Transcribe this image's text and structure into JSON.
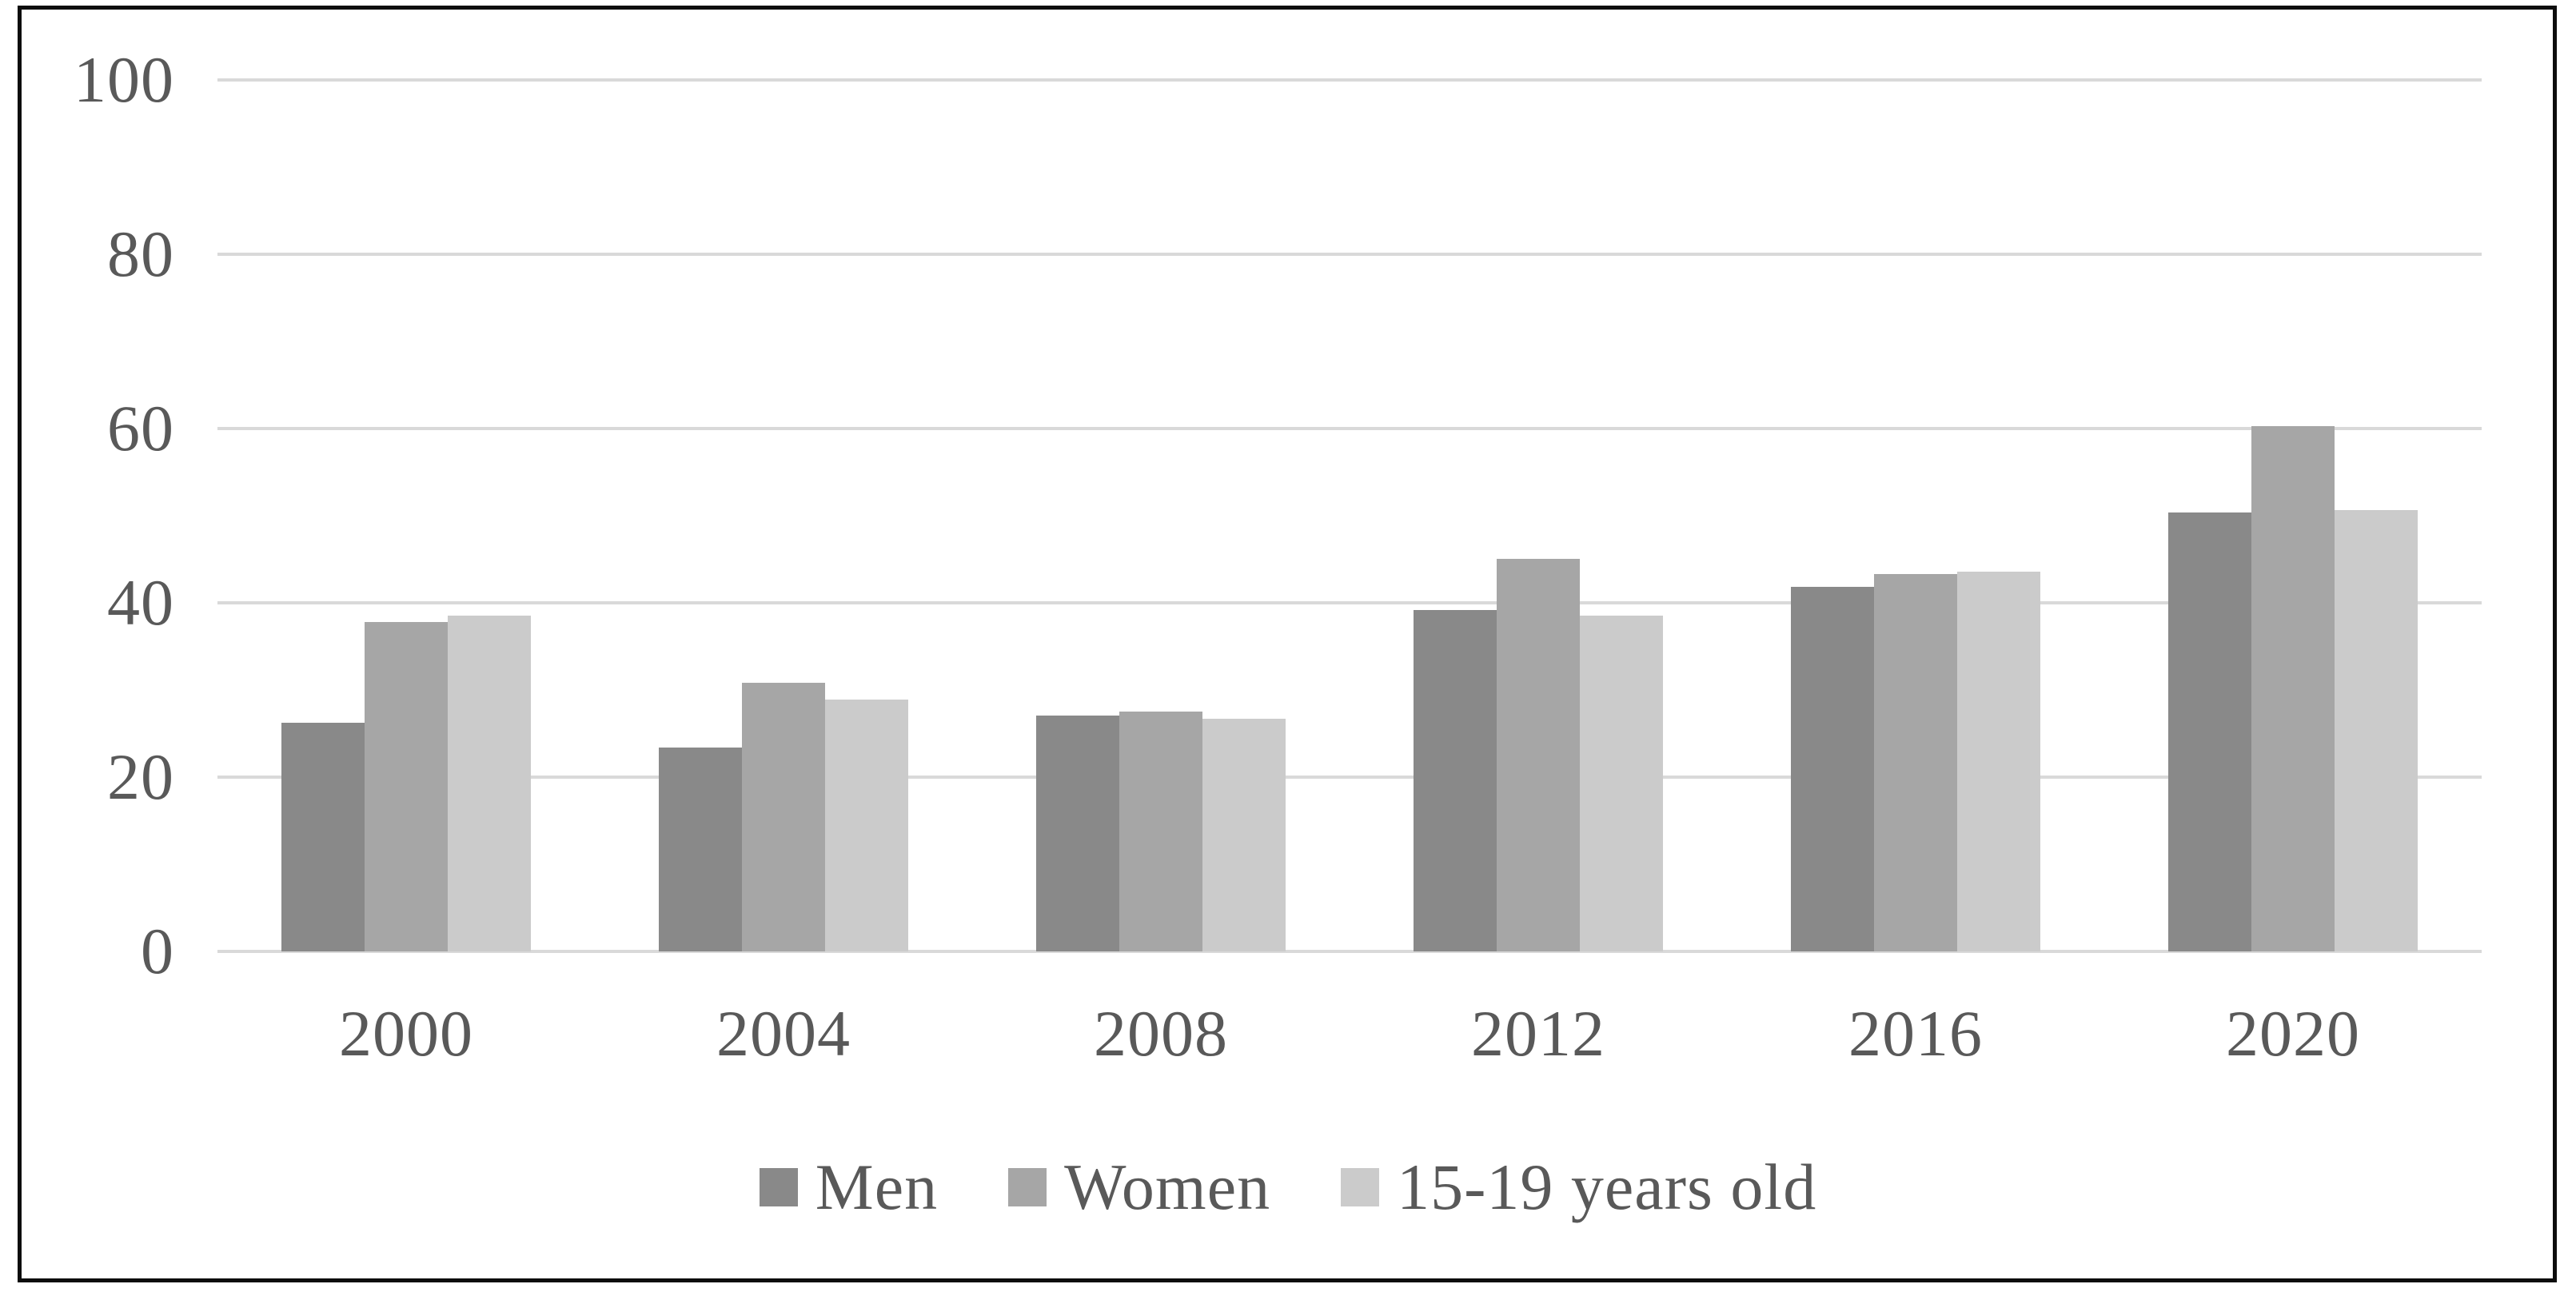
{
  "chart_data": {
    "type": "bar",
    "title": "",
    "categories": [
      "2000",
      "2004",
      "2008",
      "2012",
      "2016",
      "2020"
    ],
    "series": [
      {
        "name": "Men",
        "color": "#898989",
        "values": [
          26.2,
          23.4,
          27.1,
          39.2,
          41.8,
          50.4
        ]
      },
      {
        "name": "Women",
        "color": "#a6a6a6",
        "values": [
          37.8,
          30.8,
          27.5,
          45.0,
          43.3,
          60.3
        ]
      },
      {
        "name": "15-19 years old",
        "color": "#cbcbcb",
        "values": [
          38.5,
          28.9,
          26.7,
          38.5,
          43.6,
          50.6
        ]
      }
    ],
    "xlabel": "",
    "ylabel": "",
    "ylim": [
      0,
      100
    ],
    "y_tick_step": 20,
    "y_tick_labels": [
      "0",
      "20",
      "40",
      "60",
      "80",
      "100"
    ],
    "grid": true,
    "gridline_color": "#d9d9d9",
    "tick_label_color": "#595959",
    "frame_border_color": "#0d0d0d",
    "legend_position": "bottom"
  }
}
